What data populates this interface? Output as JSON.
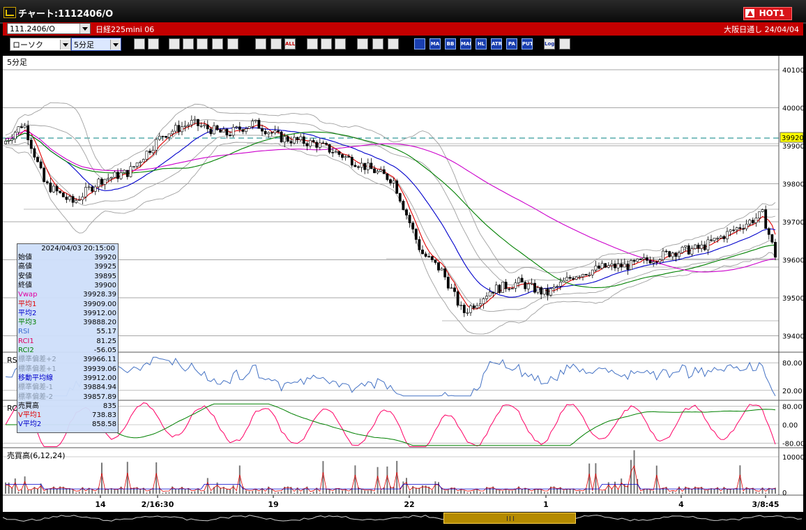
{
  "window": {
    "title": "チャート:1112406/O",
    "hot_label": "HOT1"
  },
  "symbol_bar": {
    "code": "111.2406/O",
    "name": "日経225mini 06",
    "exchange_date": "大阪日通し   24/04/04"
  },
  "toolbar": {
    "chart_type": "ローソク",
    "period": "5分足",
    "icons": [
      "zoom-icon",
      "crosshair-icon",
      "order-icon",
      "search-quote-icon",
      "bar-volume-icon",
      "swap-icon",
      "calculator-icon",
      "candle-icon",
      "candle-split-icon",
      "all-button",
      "draw-line-icon",
      "cursor-icon",
      "arrow-icon",
      "settings-icon",
      "tool-icon",
      "color-icon",
      "ichimoku-button",
      "ma-button",
      "bb-button",
      "mae-button",
      "hl-button",
      "atr-button",
      "para-button",
      "put-button",
      "log-button",
      "export-icon"
    ],
    "icon_labels": {
      "all": "ALL",
      "ma": "MA",
      "bb": "BB",
      "mae": "MAE",
      "hl": "HL",
      "atr": "ATR",
      "para": "PA RA",
      "put": "PUT",
      "log": "Log"
    }
  },
  "chart": {
    "period_label": "5分足",
    "price_ticks": [
      "40100",
      "40000",
      "39900",
      "39800",
      "39700",
      "39600",
      "39500",
      "39400"
    ],
    "current_price_tag": "39920",
    "rsi_label": "RS",
    "rsi_ticks": [
      "80.00",
      "20.00"
    ],
    "rci_label": "RC",
    "rci_ticks": [
      "80.00",
      "0.00",
      "-80.00"
    ],
    "volume_label": "売買高(6,12,24)",
    "volume_ticks": [
      "10000",
      "0"
    ],
    "date_labels": [
      "14",
      "2/16:30",
      "19",
      "22",
      "1",
      "4",
      "3/8:45"
    ],
    "colors": {
      "up": "#ffffff",
      "down": "#000000",
      "ma1": "#e00000",
      "ma2": "#0000cc",
      "ma3": "#008000",
      "long_ma": "#cc00cc",
      "bands": "#a0a0a0",
      "dashed": "#008080",
      "rsi": "#4472c4",
      "rci1": "#ff0066",
      "rci2": "#008000"
    }
  },
  "data_panel": {
    "datetime": "2024/04/03  20:15:00",
    "rows": [
      {
        "label": "始値",
        "value": "39920",
        "color": "#000000"
      },
      {
        "label": "高値",
        "value": "39925",
        "color": "#000000"
      },
      {
        "label": "安値",
        "value": "39895",
        "color": "#000000"
      },
      {
        "label": "終値",
        "value": "39900",
        "color": "#000000"
      },
      {
        "label": "Vwap",
        "value": "39928.39",
        "color": "#e000a0"
      },
      {
        "label": "平均1",
        "value": "39909.00",
        "color": "#e00000"
      },
      {
        "label": "平均2",
        "value": "39912.00",
        "color": "#0000cc"
      },
      {
        "label": "平均3",
        "value": "39888.20",
        "color": "#008000"
      },
      {
        "label": "RSI",
        "value": "55.17",
        "color": "#3a6ad0"
      },
      {
        "label": "RCI1",
        "value": "81.25",
        "color": "#e00060"
      },
      {
        "label": "RCI2",
        "value": "-56.05",
        "color": "#008000"
      },
      {
        "label": "標準偏差+2",
        "value": "39966.11",
        "color": "#8a9ab0"
      },
      {
        "label": "標準偏差+1",
        "value": "39939.06",
        "color": "#8a9ab0"
      },
      {
        "label": "移動平均線",
        "value": "39912.00",
        "color": "#0000cc"
      },
      {
        "label": "標準偏差-1",
        "value": "39884.94",
        "color": "#8a9ab0"
      },
      {
        "label": "標準偏差-2",
        "value": "39857.89",
        "color": "#8a9ab0"
      },
      {
        "label": "売買高",
        "value": "835",
        "color": "#000000"
      },
      {
        "label": "V平均1",
        "value": "738.83",
        "color": "#e00000"
      },
      {
        "label": "V平均2",
        "value": "858.58",
        "color": "#0000cc"
      }
    ]
  }
}
